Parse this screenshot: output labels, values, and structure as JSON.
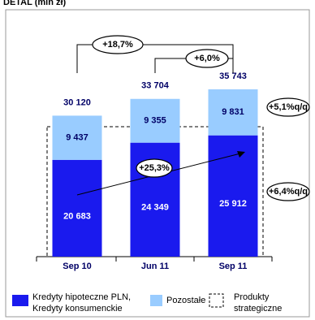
{
  "chart_data": {
    "type": "stacked-bar",
    "title": "DETAL (mln zł)",
    "categories": [
      "Sep 10",
      "Jun 11",
      "Sep 11"
    ],
    "series": [
      {
        "name": "Kredyty hipoteczne PLN, Kredyty konsumenckie",
        "color": "#1a1aee",
        "values": [
          20683,
          24349,
          25912
        ],
        "value_labels": [
          "20 683",
          "24 349",
          "25 912"
        ]
      },
      {
        "name": "Pozostałe",
        "color": "#99ccff",
        "values": [
          9437,
          9355,
          9831
        ],
        "value_labels": [
          "9 437",
          "9 355",
          "9 831"
        ]
      }
    ],
    "totals": {
      "values": [
        30120,
        33704,
        35743
      ],
      "value_labels": [
        "30 120",
        "33 704",
        "35 743"
      ]
    },
    "strategic_legend": [
      "Produkty",
      "strategiczne"
    ],
    "annotations": [
      "+18,7%",
      "+6,0%",
      "+5,1%q/q",
      "+6,4%q/q",
      "+25,3%"
    ]
  }
}
